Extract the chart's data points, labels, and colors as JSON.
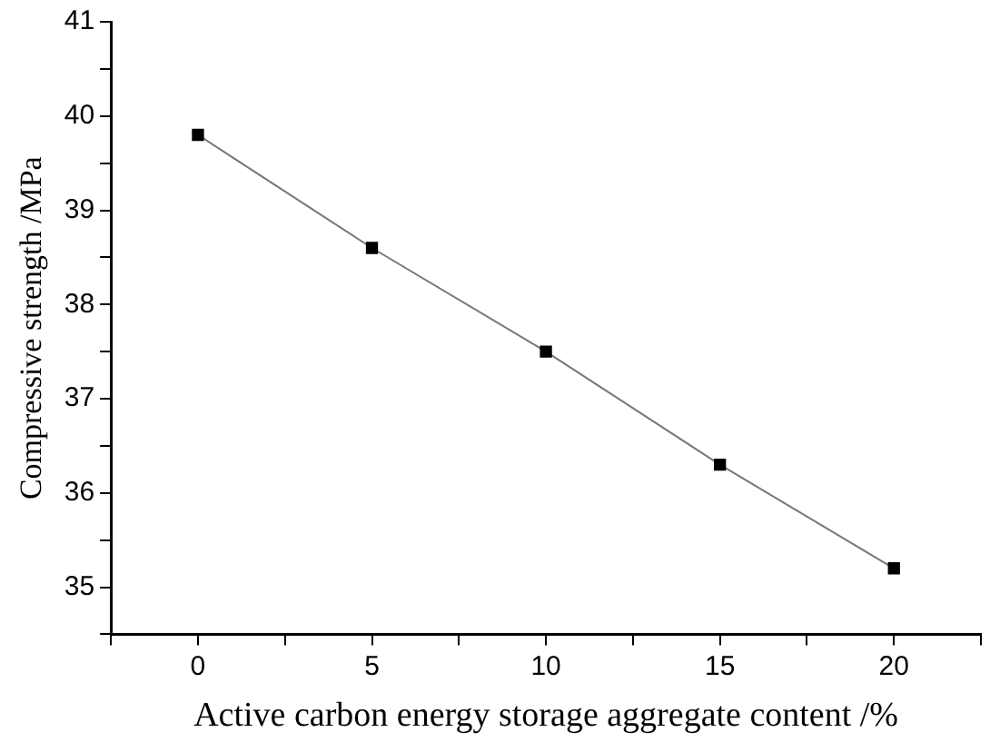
{
  "chart_data": {
    "type": "line",
    "xlabel": "Active carbon energy storage aggregate content /%",
    "ylabel": "Compressive strength /MPa",
    "x": [
      0,
      5,
      10,
      15,
      20
    ],
    "series": [
      {
        "color": "#000000",
        "values": [
          39.8,
          38.6,
          37.5,
          36.3,
          35.2
        ]
      }
    ],
    "xlim": [
      -2.5,
      22.5
    ],
    "xticks": [
      {
        "value": -2.5,
        "label": null
      },
      0,
      {
        "value": 2.5,
        "label": null
      },
      5,
      {
        "value": 7.5,
        "label": null
      },
      10,
      {
        "value": 12.5,
        "label": null
      },
      15,
      {
        "value": 17.5,
        "label": null
      },
      20,
      {
        "value": 22.5,
        "label": null
      }
    ],
    "ylim": [
      34.5,
      41
    ],
    "yticks": [
      {
        "value": 34.5,
        "label": null
      },
      35,
      {
        "value": 35.5,
        "label": null
      },
      36,
      {
        "value": 36.5,
        "label": null
      },
      37,
      {
        "value": 37.5,
        "label": null
      },
      38,
      {
        "value": 38.5,
        "label": null
      },
      39,
      {
        "value": 39.5,
        "label": null
      },
      40,
      {
        "value": 40.5,
        "label": null
      },
      41
    ],
    "grid": false,
    "legend": false,
    "marker": "square",
    "line_style": "solid"
  }
}
